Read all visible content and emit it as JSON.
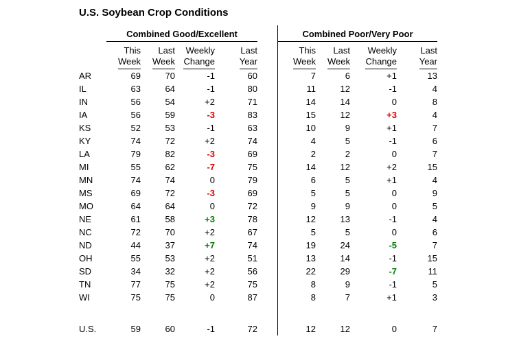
{
  "title": "U.S. Soybean Crop Conditions",
  "colors": {
    "text": "#000000",
    "rule": "#000000",
    "negative_highlight": "#dd0000",
    "positive_highlight": "#008000",
    "background": "#ffffff"
  },
  "chart_data": {
    "type": "table",
    "title": "U.S. Soybean Crop Conditions",
    "section_headers": [
      "Combined Good/Excellent",
      "Combined Poor/Very Poor"
    ],
    "column_headers": [
      [
        "This",
        "Week"
      ],
      [
        "Last",
        "Week"
      ],
      [
        "Weekly",
        "Change"
      ],
      [
        "Last",
        "Year"
      ]
    ],
    "rows": [
      {
        "state": "AR",
        "good_excellent": {
          "this_week": 69,
          "last_week": 70,
          "weekly_change": "-1",
          "last_year": 60,
          "change_highlight": null
        },
        "poor_very_poor": {
          "this_week": 7,
          "last_week": 6,
          "weekly_change": "+1",
          "last_year": 13,
          "change_highlight": null
        }
      },
      {
        "state": "IL",
        "good_excellent": {
          "this_week": 63,
          "last_week": 64,
          "weekly_change": "-1",
          "last_year": 80,
          "change_highlight": null
        },
        "poor_very_poor": {
          "this_week": 11,
          "last_week": 12,
          "weekly_change": "-1",
          "last_year": 4,
          "change_highlight": null
        }
      },
      {
        "state": "IN",
        "good_excellent": {
          "this_week": 56,
          "last_week": 54,
          "weekly_change": "+2",
          "last_year": 71,
          "change_highlight": null
        },
        "poor_very_poor": {
          "this_week": 14,
          "last_week": 14,
          "weekly_change": "0",
          "last_year": 8,
          "change_highlight": null
        }
      },
      {
        "state": "IA",
        "good_excellent": {
          "this_week": 56,
          "last_week": 59,
          "weekly_change": "-3",
          "last_year": 83,
          "change_highlight": "red"
        },
        "poor_very_poor": {
          "this_week": 15,
          "last_week": 12,
          "weekly_change": "+3",
          "last_year": 4,
          "change_highlight": "red"
        }
      },
      {
        "state": "KS",
        "good_excellent": {
          "this_week": 52,
          "last_week": 53,
          "weekly_change": "-1",
          "last_year": 63,
          "change_highlight": null
        },
        "poor_very_poor": {
          "this_week": 10,
          "last_week": 9,
          "weekly_change": "+1",
          "last_year": 7,
          "change_highlight": null
        }
      },
      {
        "state": "KY",
        "good_excellent": {
          "this_week": 74,
          "last_week": 72,
          "weekly_change": "+2",
          "last_year": 74,
          "change_highlight": null
        },
        "poor_very_poor": {
          "this_week": 4,
          "last_week": 5,
          "weekly_change": "-1",
          "last_year": 6,
          "change_highlight": null
        }
      },
      {
        "state": "LA",
        "good_excellent": {
          "this_week": 79,
          "last_week": 82,
          "weekly_change": "-3",
          "last_year": 69,
          "change_highlight": "red"
        },
        "poor_very_poor": {
          "this_week": 2,
          "last_week": 2,
          "weekly_change": "0",
          "last_year": 7,
          "change_highlight": null
        }
      },
      {
        "state": "MI",
        "good_excellent": {
          "this_week": 55,
          "last_week": 62,
          "weekly_change": "-7",
          "last_year": 75,
          "change_highlight": "red"
        },
        "poor_very_poor": {
          "this_week": 14,
          "last_week": 12,
          "weekly_change": "+2",
          "last_year": 15,
          "change_highlight": null
        }
      },
      {
        "state": "MN",
        "good_excellent": {
          "this_week": 74,
          "last_week": 74,
          "weekly_change": "0",
          "last_year": 79,
          "change_highlight": null
        },
        "poor_very_poor": {
          "this_week": 6,
          "last_week": 5,
          "weekly_change": "+1",
          "last_year": 4,
          "change_highlight": null
        }
      },
      {
        "state": "MS",
        "good_excellent": {
          "this_week": 69,
          "last_week": 72,
          "weekly_change": "-3",
          "last_year": 69,
          "change_highlight": "red"
        },
        "poor_very_poor": {
          "this_week": 5,
          "last_week": 5,
          "weekly_change": "0",
          "last_year": 9,
          "change_highlight": null
        }
      },
      {
        "state": "MO",
        "good_excellent": {
          "this_week": 64,
          "last_week": 64,
          "weekly_change": "0",
          "last_year": 72,
          "change_highlight": null
        },
        "poor_very_poor": {
          "this_week": 9,
          "last_week": 9,
          "weekly_change": "0",
          "last_year": 5,
          "change_highlight": null
        }
      },
      {
        "state": "NE",
        "good_excellent": {
          "this_week": 61,
          "last_week": 58,
          "weekly_change": "+3",
          "last_year": 78,
          "change_highlight": "green"
        },
        "poor_very_poor": {
          "this_week": 12,
          "last_week": 13,
          "weekly_change": "-1",
          "last_year": 4,
          "change_highlight": null
        }
      },
      {
        "state": "NC",
        "good_excellent": {
          "this_week": 72,
          "last_week": 70,
          "weekly_change": "+2",
          "last_year": 67,
          "change_highlight": null
        },
        "poor_very_poor": {
          "this_week": 5,
          "last_week": 5,
          "weekly_change": "0",
          "last_year": 6,
          "change_highlight": null
        }
      },
      {
        "state": "ND",
        "good_excellent": {
          "this_week": 44,
          "last_week": 37,
          "weekly_change": "+7",
          "last_year": 74,
          "change_highlight": "green"
        },
        "poor_very_poor": {
          "this_week": 19,
          "last_week": 24,
          "weekly_change": "-5",
          "last_year": 7,
          "change_highlight": "green"
        }
      },
      {
        "state": "OH",
        "good_excellent": {
          "this_week": 55,
          "last_week": 53,
          "weekly_change": "+2",
          "last_year": 51,
          "change_highlight": null
        },
        "poor_very_poor": {
          "this_week": 13,
          "last_week": 14,
          "weekly_change": "-1",
          "last_year": 15,
          "change_highlight": null
        }
      },
      {
        "state": "SD",
        "good_excellent": {
          "this_week": 34,
          "last_week": 32,
          "weekly_change": "+2",
          "last_year": 56,
          "change_highlight": null
        },
        "poor_very_poor": {
          "this_week": 22,
          "last_week": 29,
          "weekly_change": "-7",
          "last_year": 11,
          "change_highlight": "green"
        }
      },
      {
        "state": "TN",
        "good_excellent": {
          "this_week": 77,
          "last_week": 75,
          "weekly_change": "+2",
          "last_year": 75,
          "change_highlight": null
        },
        "poor_very_poor": {
          "this_week": 8,
          "last_week": 9,
          "weekly_change": "-1",
          "last_year": 5,
          "change_highlight": null
        }
      },
      {
        "state": "WI",
        "good_excellent": {
          "this_week": 75,
          "last_week": 75,
          "weekly_change": "0",
          "last_year": 87,
          "change_highlight": null
        },
        "poor_very_poor": {
          "this_week": 8,
          "last_week": 7,
          "weekly_change": "+1",
          "last_year": 3,
          "change_highlight": null
        }
      }
    ],
    "total_row": {
      "state": "U.S.",
      "good_excellent": {
        "this_week": 59,
        "last_week": 60,
        "weekly_change": "-1",
        "last_year": 72,
        "change_highlight": null
      },
      "poor_very_poor": {
        "this_week": 12,
        "last_week": 12,
        "weekly_change": "0",
        "last_year": 7,
        "change_highlight": null
      }
    }
  }
}
